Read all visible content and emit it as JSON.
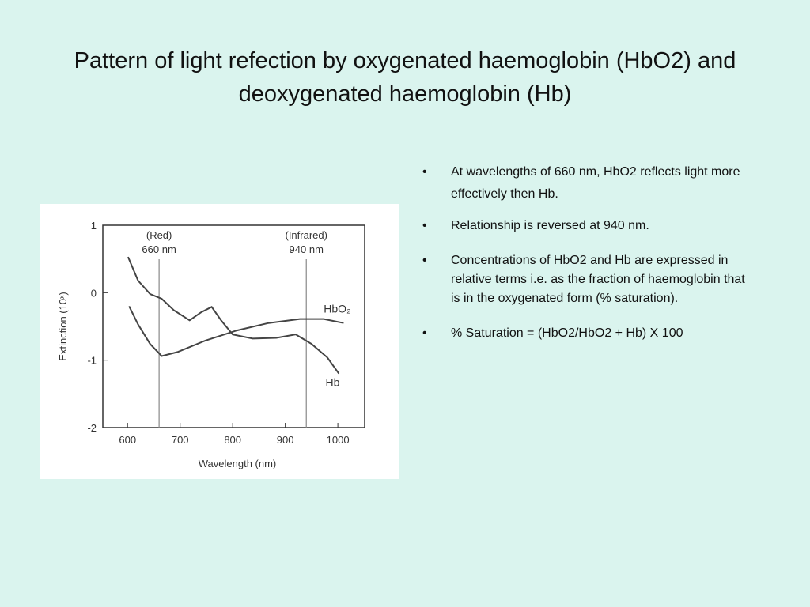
{
  "title": "Pattern of light refection by oxygenated haemoglobin (HbO2) and deoxygenated haemoglobin (Hb)",
  "bullets": [
    "At wavelengths of  660 nm, HbO2 reflects light more effectively then Hb.",
    "Relationship is reversed at 940 nm.",
    "Concentrations of HbO2 and Hb are expressed in relative terms i.e. as the fraction of haemoglobin that is in the oxygenated form (% saturation).",
    "% Saturation = (HbO2/HbO2 + Hb) X 100"
  ],
  "chart_data": {
    "type": "line",
    "x_label": "Wavelength (nm)",
    "y_label": "Extinction (10ˣ)",
    "xlim": [
      553,
      1051
    ],
    "ylim": [
      -2,
      1
    ],
    "xticks": [
      600,
      700,
      800,
      900,
      1000
    ],
    "yticks": [
      -2,
      -1,
      0,
      1
    ],
    "markers": [
      {
        "x": 660,
        "labels": [
          "(Red)",
          "660 nm"
        ]
      },
      {
        "x": 940,
        "labels": [
          "(Infrared)",
          "940 nm"
        ]
      }
    ],
    "series": [
      {
        "name": "HbO₂",
        "color": "#444444",
        "x": [
          603,
          620,
          643,
          665,
          695,
          748,
          808,
          868,
          928,
          973,
          1011
        ],
        "values": [
          -0.2,
          -0.47,
          -0.76,
          -0.94,
          -0.88,
          -0.71,
          -0.56,
          -0.45,
          -0.39,
          -0.39,
          -0.45
        ]
      },
      {
        "name": "Hb",
        "color": "#444444",
        "x": [
          601,
          620,
          643,
          665,
          688,
          718,
          740,
          760,
          778,
          800,
          838,
          883,
          920,
          950,
          980,
          1002
        ],
        "values": [
          0.53,
          0.18,
          -0.02,
          -0.09,
          -0.26,
          -0.41,
          -0.29,
          -0.21,
          -0.41,
          -0.62,
          -0.68,
          -0.67,
          -0.62,
          -0.76,
          -0.96,
          -1.2
        ]
      }
    ]
  }
}
